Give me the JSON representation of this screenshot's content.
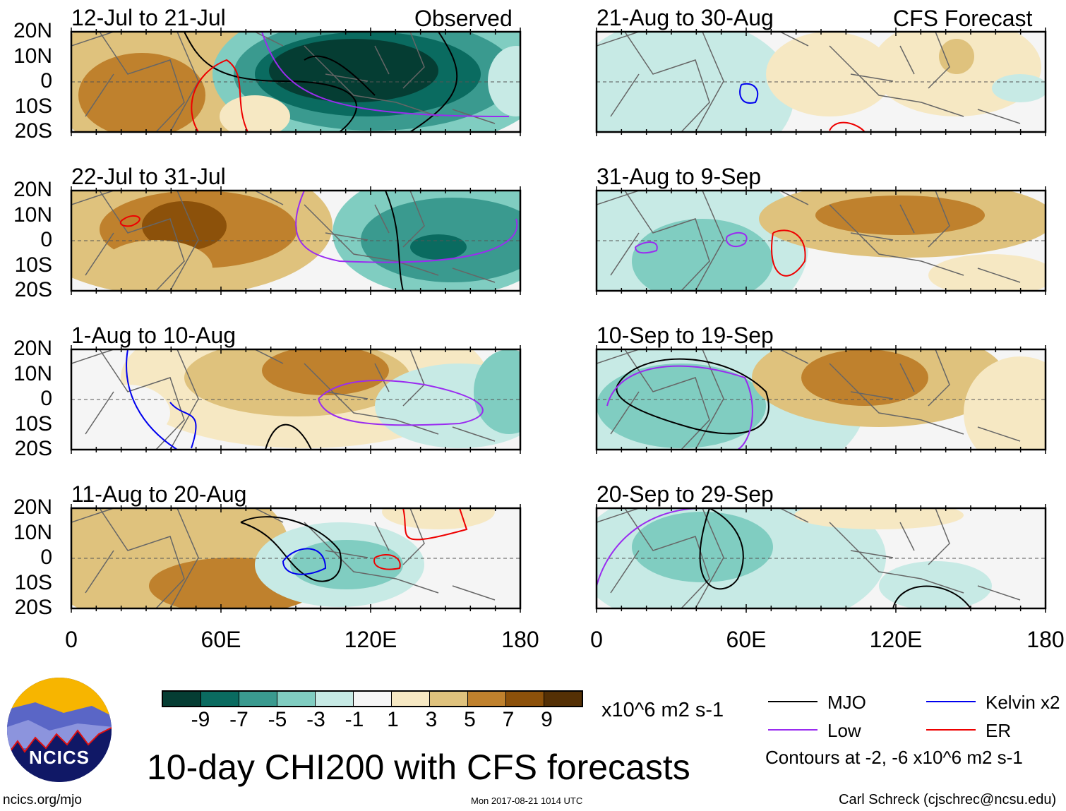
{
  "chart_data": {
    "type": "heatmap",
    "title": "10-day CHI200 with CFS forecasts",
    "variable": "CHI200",
    "units": "x10^6 m2 s-1",
    "column_labels": [
      "Observed",
      "CFS Forecast"
    ],
    "lat_ticks": [
      "20N",
      "10N",
      "0",
      "10S",
      "20S"
    ],
    "lon_ticks": [
      "0",
      "60E",
      "120E",
      "180"
    ],
    "lon_range": [
      0,
      180
    ],
    "lat_range": [
      -20,
      20
    ],
    "panels": [
      {
        "title": "12-Jul to 21-Jul",
        "column": "Observed"
      },
      {
        "title": "22-Jul to 31-Jul",
        "column": "Observed"
      },
      {
        "title": "1-Aug to 10-Aug",
        "column": "Observed"
      },
      {
        "title": "11-Aug to 20-Aug",
        "column": "Observed"
      },
      {
        "title": "21-Aug to 30-Aug",
        "column": "CFS Forecast"
      },
      {
        "title": "31-Aug to 9-Sep",
        "column": "CFS Forecast"
      },
      {
        "title": "10-Sep to 19-Sep",
        "column": "CFS Forecast"
      },
      {
        "title": "20-Sep to 29-Sep",
        "column": "CFS Forecast"
      }
    ],
    "colorbar": {
      "ticks": [
        "-9",
        "-7",
        "-5",
        "-3",
        "-1",
        "1",
        "3",
        "5",
        "7",
        "9"
      ],
      "colors": [
        "#053d33",
        "#0a6b60",
        "#3a9a8f",
        "#80cdc1",
        "#c7eae5",
        "#f5f5f5",
        "#f6e8c3",
        "#dfc27d",
        "#bf812d",
        "#8c510a",
        "#543005"
      ]
    },
    "legend": [
      {
        "label": "MJO",
        "color": "#000000"
      },
      {
        "label": "Kelvin x2",
        "color": "#0000ee"
      },
      {
        "label": "Low",
        "color": "#9a2cf0"
      },
      {
        "label": "ER",
        "color": "#ee0000"
      }
    ],
    "contour_note": "Contours at -2, -6 x10^6 m2 s-1"
  },
  "footer": {
    "logo_text": "NCICS",
    "url": "ncics.org/mjo",
    "timestamp": "Mon 2017-08-21 1014 UTC",
    "author": "Carl Schreck (cjschrec@ncsu.edu)"
  }
}
